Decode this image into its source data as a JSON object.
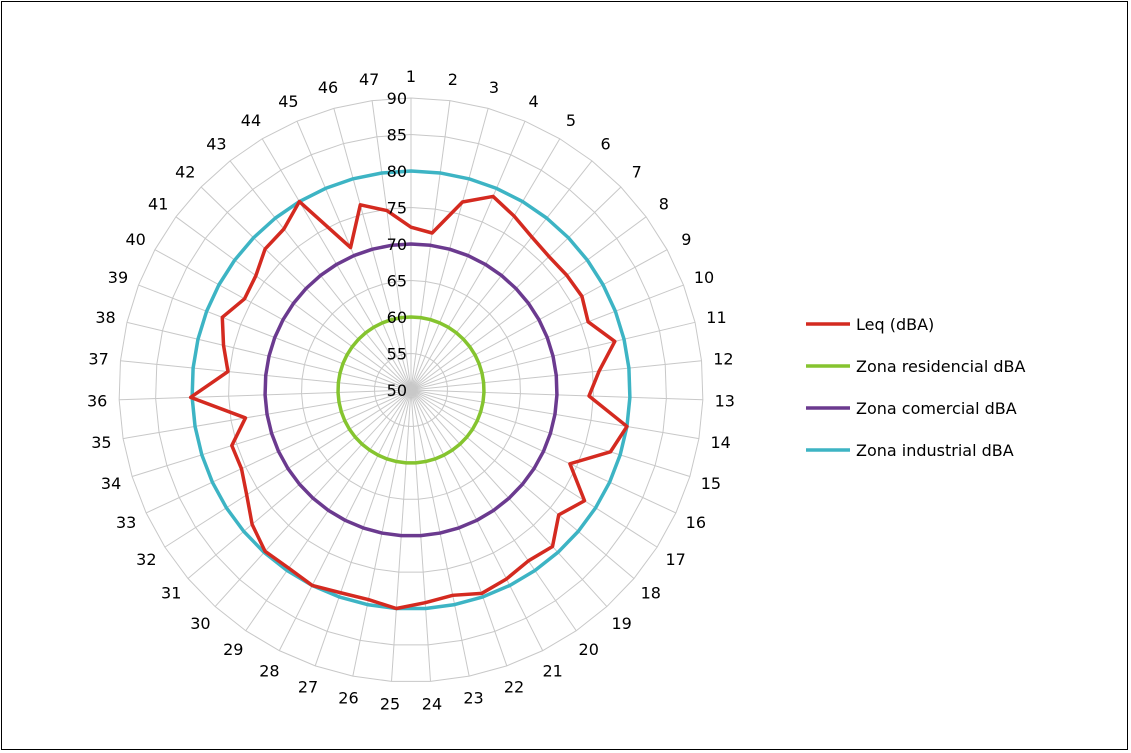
{
  "chart_data": {
    "type": "radar",
    "categories": [
      "1",
      "2",
      "3",
      "4",
      "5",
      "6",
      "7",
      "8",
      "9",
      "10",
      "11",
      "12",
      "13",
      "14",
      "15",
      "16",
      "17",
      "18",
      "19",
      "20",
      "21",
      "22",
      "23",
      "24",
      "25",
      "26",
      "27",
      "28",
      "29",
      "30",
      "31",
      "32",
      "33",
      "34",
      "35",
      "36",
      "37",
      "38",
      "39",
      "40",
      "41",
      "42",
      "43",
      "44",
      "45",
      "46",
      "47"
    ],
    "radial_ticks": [
      50,
      55,
      60,
      65,
      70,
      75,
      80,
      85,
      90
    ],
    "rlim": [
      50,
      90
    ],
    "grid": true,
    "legend_position": "right",
    "series": [
      {
        "name": "Leq (dBA)",
        "color": "#d42a20",
        "values": [
          72.3,
          71.7,
          76.7,
          78.8,
          77.7,
          76.7,
          76.3,
          76.5,
          76.7,
          76.0,
          78.7,
          75.9,
          74.4,
          80.0,
          78.6,
          74.0,
          78.2,
          76.5,
          78.9,
          78.4,
          79.0,
          79.5,
          78.7,
          79.2,
          80.0,
          79.3,
          79.4,
          80.0,
          79.6,
          79.8,
          78.5,
          76.7,
          75.6,
          75.7,
          73.0,
          80.2,
          75.2,
          76.4,
          77.7,
          76.0,
          76.4,
          77.8,
          78.1,
          80.0,
          71.2,
          76.3,
          74.8
        ]
      },
      {
        "name": "Zona residencial dBA",
        "color": "#85c42f",
        "values": [
          60,
          60,
          60,
          60,
          60,
          60,
          60,
          60,
          60,
          60,
          60,
          60,
          60,
          60,
          60,
          60,
          60,
          60,
          60,
          60,
          60,
          60,
          60,
          60,
          60,
          60,
          60,
          60,
          60,
          60,
          60,
          60,
          60,
          60,
          60,
          60,
          60,
          60,
          60,
          60,
          60,
          60,
          60,
          60,
          60,
          60,
          60
        ]
      },
      {
        "name": "Zona comercial dBA",
        "color": "#6b3a8f",
        "values": [
          70,
          70,
          70,
          70,
          70,
          70,
          70,
          70,
          70,
          70,
          70,
          70,
          70,
          70,
          70,
          70,
          70,
          70,
          70,
          70,
          70,
          70,
          70,
          70,
          70,
          70,
          70,
          70,
          70,
          70,
          70,
          70,
          70,
          70,
          70,
          70,
          70,
          70,
          70,
          70,
          70,
          70,
          70,
          70,
          70,
          70,
          70
        ]
      },
      {
        "name": "Zona industrial dBA",
        "color": "#3db4c4",
        "values": [
          80,
          80,
          80,
          80,
          80,
          80,
          80,
          80,
          80,
          80,
          80,
          80,
          80,
          80,
          80,
          80,
          80,
          80,
          80,
          80,
          80,
          80,
          80,
          80,
          80,
          80,
          80,
          80,
          80,
          80,
          80,
          80,
          80,
          80,
          80,
          80,
          80,
          80,
          80,
          80,
          80,
          80,
          80,
          80,
          80,
          80,
          80
        ]
      }
    ]
  }
}
